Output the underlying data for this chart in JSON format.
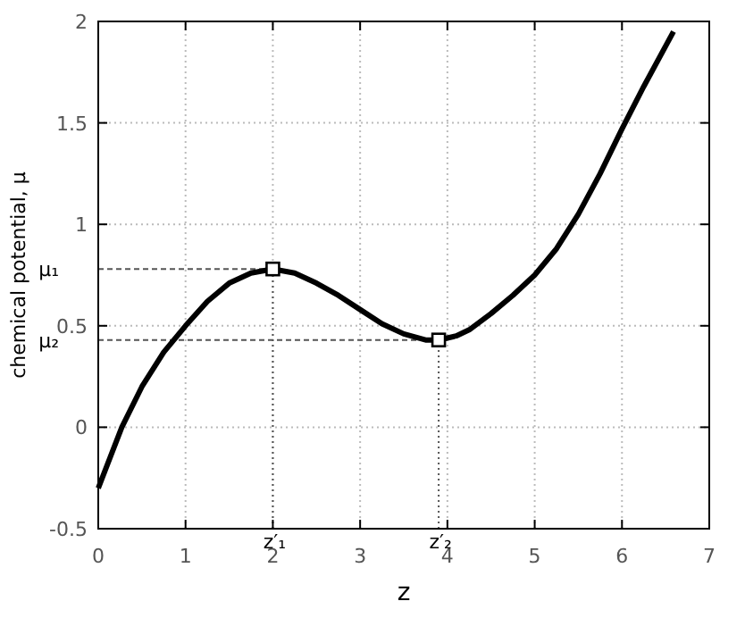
{
  "chart_data": {
    "type": "line",
    "xlabel": "z",
    "ylabel": "chemical potential, μ",
    "series": [
      {
        "color": "#000000",
        "marker": "none",
        "x": [
          0,
          0.27,
          0.5,
          0.75,
          1,
          1.25,
          1.5,
          1.75,
          2,
          2.25,
          2.5,
          2.75,
          3,
          3.25,
          3.5,
          3.75,
          3.9,
          4.1,
          4.25,
          4.5,
          4.75,
          5,
          5.25,
          5.5,
          5.75,
          6,
          6.25,
          6.59
        ],
        "values": [
          -0.3,
          0,
          0.2,
          0.37,
          0.5,
          0.62,
          0.71,
          0.76,
          0.78,
          0.76,
          0.71,
          0.65,
          0.58,
          0.51,
          0.46,
          0.43,
          0.43,
          0.45,
          0.48,
          0.56,
          0.65,
          0.75,
          0.88,
          1.05,
          1.25,
          1.47,
          1.68,
          1.95
        ]
      },
      {
        "type": "scatter",
        "color": "#000000",
        "marker": "square",
        "x": [
          2,
          3.9
        ],
        "values": [
          0.78,
          0.43
        ]
      }
    ],
    "xlim": [
      0,
      7
    ],
    "xticks": [
      0,
      1,
      2,
      3,
      4,
      5,
      6,
      7
    ],
    "ylim": [
      -0.5,
      2
    ],
    "yticks": [
      -0.5,
      0,
      0.5,
      1,
      1.5,
      2
    ],
    "grid": true,
    "ref_lines": [
      {
        "axis": "y",
        "value": 0.78,
        "label": "μ₁",
        "line_style": "dashed",
        "color": "#555555"
      },
      {
        "axis": "y",
        "value": 0.43,
        "label": "μ₂",
        "line_style": "dashed",
        "color": "#555555"
      },
      {
        "axis": "x",
        "value": 2,
        "label": "z′₁",
        "line_style": "dotted",
        "color": "#555555"
      },
      {
        "axis": "x",
        "value": 3.9,
        "label": "z′₂",
        "line_style": "dotted",
        "color": "#555555"
      }
    ]
  }
}
